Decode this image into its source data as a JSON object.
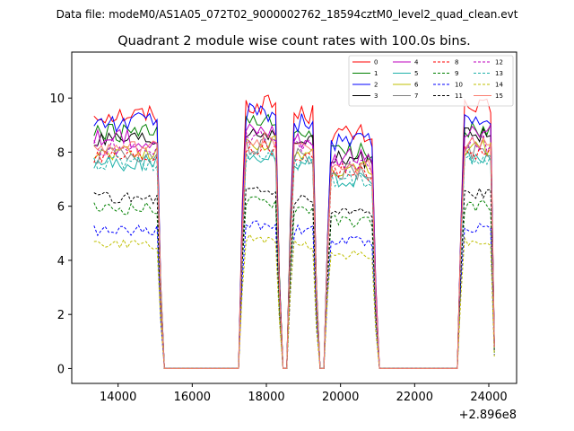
{
  "chart_data": {
    "type": "line",
    "suptitle": "Data file: modeM0/AS1A05_072T02_9000002762_18594cztM0_level2_quad_clean.evt",
    "title": "Quadrant 2 module wise count rates with 100.0s bins.",
    "xlabel": "",
    "ylabel": "",
    "x_offset_label": "+2.896e8",
    "x_offset": 289600000,
    "xlim": [
      12750,
      24750
    ],
    "ylim": [
      -0.55,
      11.7
    ],
    "xticks": [
      14000,
      16000,
      18000,
      20000,
      22000,
      24000
    ],
    "xtick_labels": [
      "14000",
      "16000",
      "18000",
      "20000",
      "22000",
      "24000"
    ],
    "yticks": [
      0,
      2,
      4,
      6,
      8,
      10
    ],
    "ytick_labels": [
      "0",
      "2",
      "4",
      "6",
      "8",
      "10"
    ],
    "grid": false,
    "legend_position": "top-right",
    "segments": [
      [
        13350,
        15150
      ],
      [
        17350,
        18350
      ],
      [
        18650,
        19350
      ],
      [
        19650,
        20950
      ],
      [
        23250,
        24150
      ]
    ],
    "series": [
      {
        "name": "0",
        "color": "#ff0000",
        "style": "solid",
        "level": 9.4
      },
      {
        "name": "1",
        "color": "#008000",
        "style": "solid",
        "level": 8.7
      },
      {
        "name": "2",
        "color": "#0000ff",
        "style": "solid",
        "level": 9.1
      },
      {
        "name": "3",
        "color": "#000000",
        "style": "solid",
        "level": 8.4
      },
      {
        "name": "4",
        "color": "#bf00bf",
        "style": "solid",
        "level": 8.5
      },
      {
        "name": "5",
        "color": "#20b2aa",
        "style": "solid",
        "level": 7.6
      },
      {
        "name": "6",
        "color": "#bfbf00",
        "style": "solid",
        "level": 8.0
      },
      {
        "name": "7",
        "color": "#808080",
        "style": "solid",
        "level": 7.9
      },
      {
        "name": "8",
        "color": "#ff0000",
        "style": "dashed",
        "level": 7.9
      },
      {
        "name": "9",
        "color": "#008000",
        "style": "dashed",
        "level": 5.9
      },
      {
        "name": "10",
        "color": "#0000ff",
        "style": "dashed",
        "level": 5.1
      },
      {
        "name": "11",
        "color": "#000000",
        "style": "dashed",
        "level": 6.3
      },
      {
        "name": "12",
        "color": "#bf00bf",
        "style": "dashed",
        "level": 8.2
      },
      {
        "name": "13",
        "color": "#20b2aa",
        "style": "dashed",
        "level": 7.6
      },
      {
        "name": "14",
        "color": "#bfbf00",
        "style": "dashed",
        "level": 4.6
      },
      {
        "name": "15",
        "color": "#fa8072",
        "style": "solid",
        "level": 8.1
      }
    ]
  }
}
